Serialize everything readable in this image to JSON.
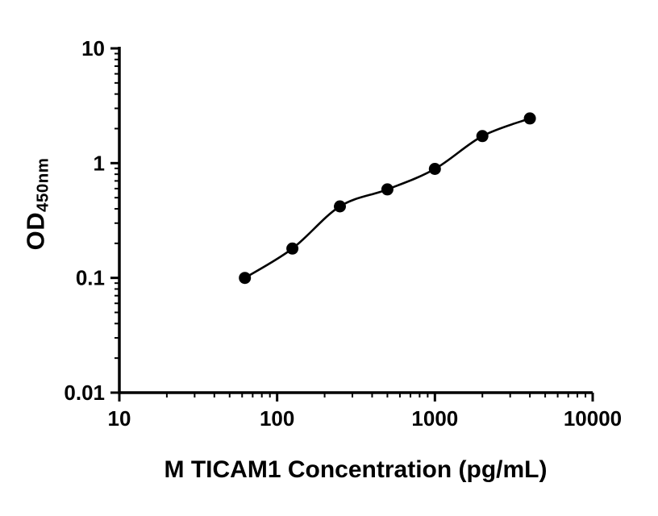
{
  "chart_data": {
    "type": "scatter",
    "title": "",
    "xlabel": "M TICAM1 Concentration (pg/mL)",
    "ylabel_main": "OD",
    "ylabel_sub": "450nm",
    "xscale": "log",
    "yscale": "log",
    "xlim": [
      10,
      10000
    ],
    "ylim": [
      0.01,
      10
    ],
    "x_ticks": [
      10,
      100,
      1000,
      10000
    ],
    "x_tick_labels": [
      "10",
      "100",
      "1000",
      "10000"
    ],
    "y_ticks": [
      10,
      1,
      0.1,
      0.01
    ],
    "y_tick_labels": [
      "10",
      "1",
      "0.1",
      "0.01"
    ],
    "grid": false,
    "legend": "none",
    "x": [
      62.5,
      125,
      250,
      500,
      1000,
      2000,
      4000
    ],
    "y": [
      0.1,
      0.18,
      0.42,
      0.59,
      0.89,
      1.72,
      2.45
    ],
    "marker": "filled-circle",
    "marker_color": "#000000",
    "line_color": "#000000",
    "axis_color": "#000000",
    "fit": "smooth-curve-through-points"
  }
}
